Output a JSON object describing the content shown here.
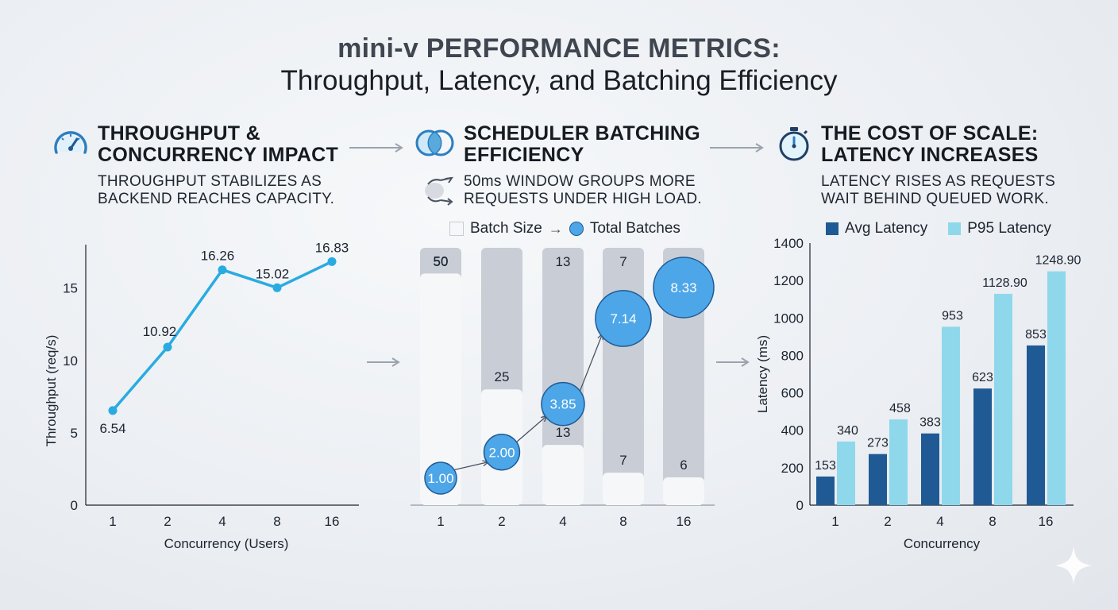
{
  "title": {
    "line1": "mini-v PERFORMANCE METRICS:",
    "line2": "Throughput, Latency, and Batching Efficiency"
  },
  "panels": {
    "throughput": {
      "heading_line1": "THROUGHPUT &",
      "heading_line2": "CONCURRENCY IMPACT",
      "sub_line1": "THROUGHPUT STABILIZES AS",
      "sub_line2": "BACKEND REACHES CAPACITY.",
      "icon": "speedometer-icon"
    },
    "batching": {
      "heading_line1": "SCHEDULER BATCHING",
      "heading_line2": "EFFICIENCY",
      "sub_line1": "50ms WINDOW GROUPS MORE",
      "sub_line2": "REQUESTS UNDER HIGH LOAD.",
      "icon": "overlapping-circles-icon",
      "sub_icon": "cycle-arrows-icon"
    },
    "latency": {
      "heading_line1": "THE COST OF SCALE:",
      "heading_line2": "LATENCY INCREASES",
      "sub_line1": "LATENCY RISES AS REQUESTS",
      "sub_line2": "WAIT BEHIND QUEUED WORK.",
      "icon": "stopwatch-icon"
    }
  },
  "colors": {
    "line_blue": "#29abe2",
    "bubble_blue": "#4da6e8",
    "avg_latency": "#1f5a94",
    "p95_latency": "#8fd8ec",
    "batch_track": "#c9ced6",
    "batch_fill": "#f6f7f9",
    "arrow_gray": "#9aa3ae"
  },
  "chart_data": [
    {
      "type": "line",
      "x": [
        "1",
        "2",
        "4",
        "8",
        "16"
      ],
      "series": [
        {
          "values": [
            6.54,
            10.92,
            16.26,
            15.02,
            16.83
          ]
        }
      ],
      "data_labels": [
        "6.54",
        "10.92",
        "16.26",
        "15.02",
        "16.83"
      ],
      "xlabel": "Concurrency (Users)",
      "ylabel": "Throughput (req/s)",
      "yticks": [
        "0",
        "5",
        "10",
        "15"
      ],
      "ylim": [
        0,
        18
      ],
      "grid": false
    },
    {
      "type": "bar",
      "categories": [
        "1",
        "2",
        "4",
        "8",
        "16"
      ],
      "legend": {
        "batch_size": "Batch Size",
        "total_batches": "Total Batches",
        "placement": "top"
      },
      "series": [
        {
          "name": "Total Batches",
          "values": [
            50,
            25,
            13,
            7,
            6
          ],
          "labels": [
            "50",
            "25",
            "13",
            "7",
            "6"
          ]
        },
        {
          "name": "Batch Size",
          "values": [
            1.0,
            2.0,
            3.85,
            7.14,
            8.33
          ],
          "labels": [
            "1.00",
            "2.00",
            "3.85",
            "7.14",
            "8.33"
          ]
        }
      ],
      "top_labels": [
        "50",
        "",
        "13",
        "7",
        ""
      ],
      "ylim": [
        0,
        50
      ]
    },
    {
      "type": "bar",
      "categories": [
        "1",
        "2",
        "4",
        "8",
        "16"
      ],
      "series": [
        {
          "name": "Avg Latency",
          "values": [
            153,
            273,
            383,
            623,
            853
          ],
          "labels": [
            "153",
            "273",
            "383",
            "623",
            "853"
          ]
        },
        {
          "name": "P95 Latency",
          "values": [
            340,
            458,
            953,
            1128.9,
            1248.9
          ],
          "labels": [
            "340",
            "458",
            "953",
            "1128.90",
            "1248.90"
          ]
        }
      ],
      "xlabel": "Concurrency",
      "ylabel": "Latency (ms)",
      "yticks": [
        "0",
        "200",
        "400",
        "600",
        "800",
        "1000",
        "1200",
        "1400"
      ],
      "ylim": [
        0,
        1400
      ],
      "legend_placement": "top",
      "grid": false
    }
  ]
}
